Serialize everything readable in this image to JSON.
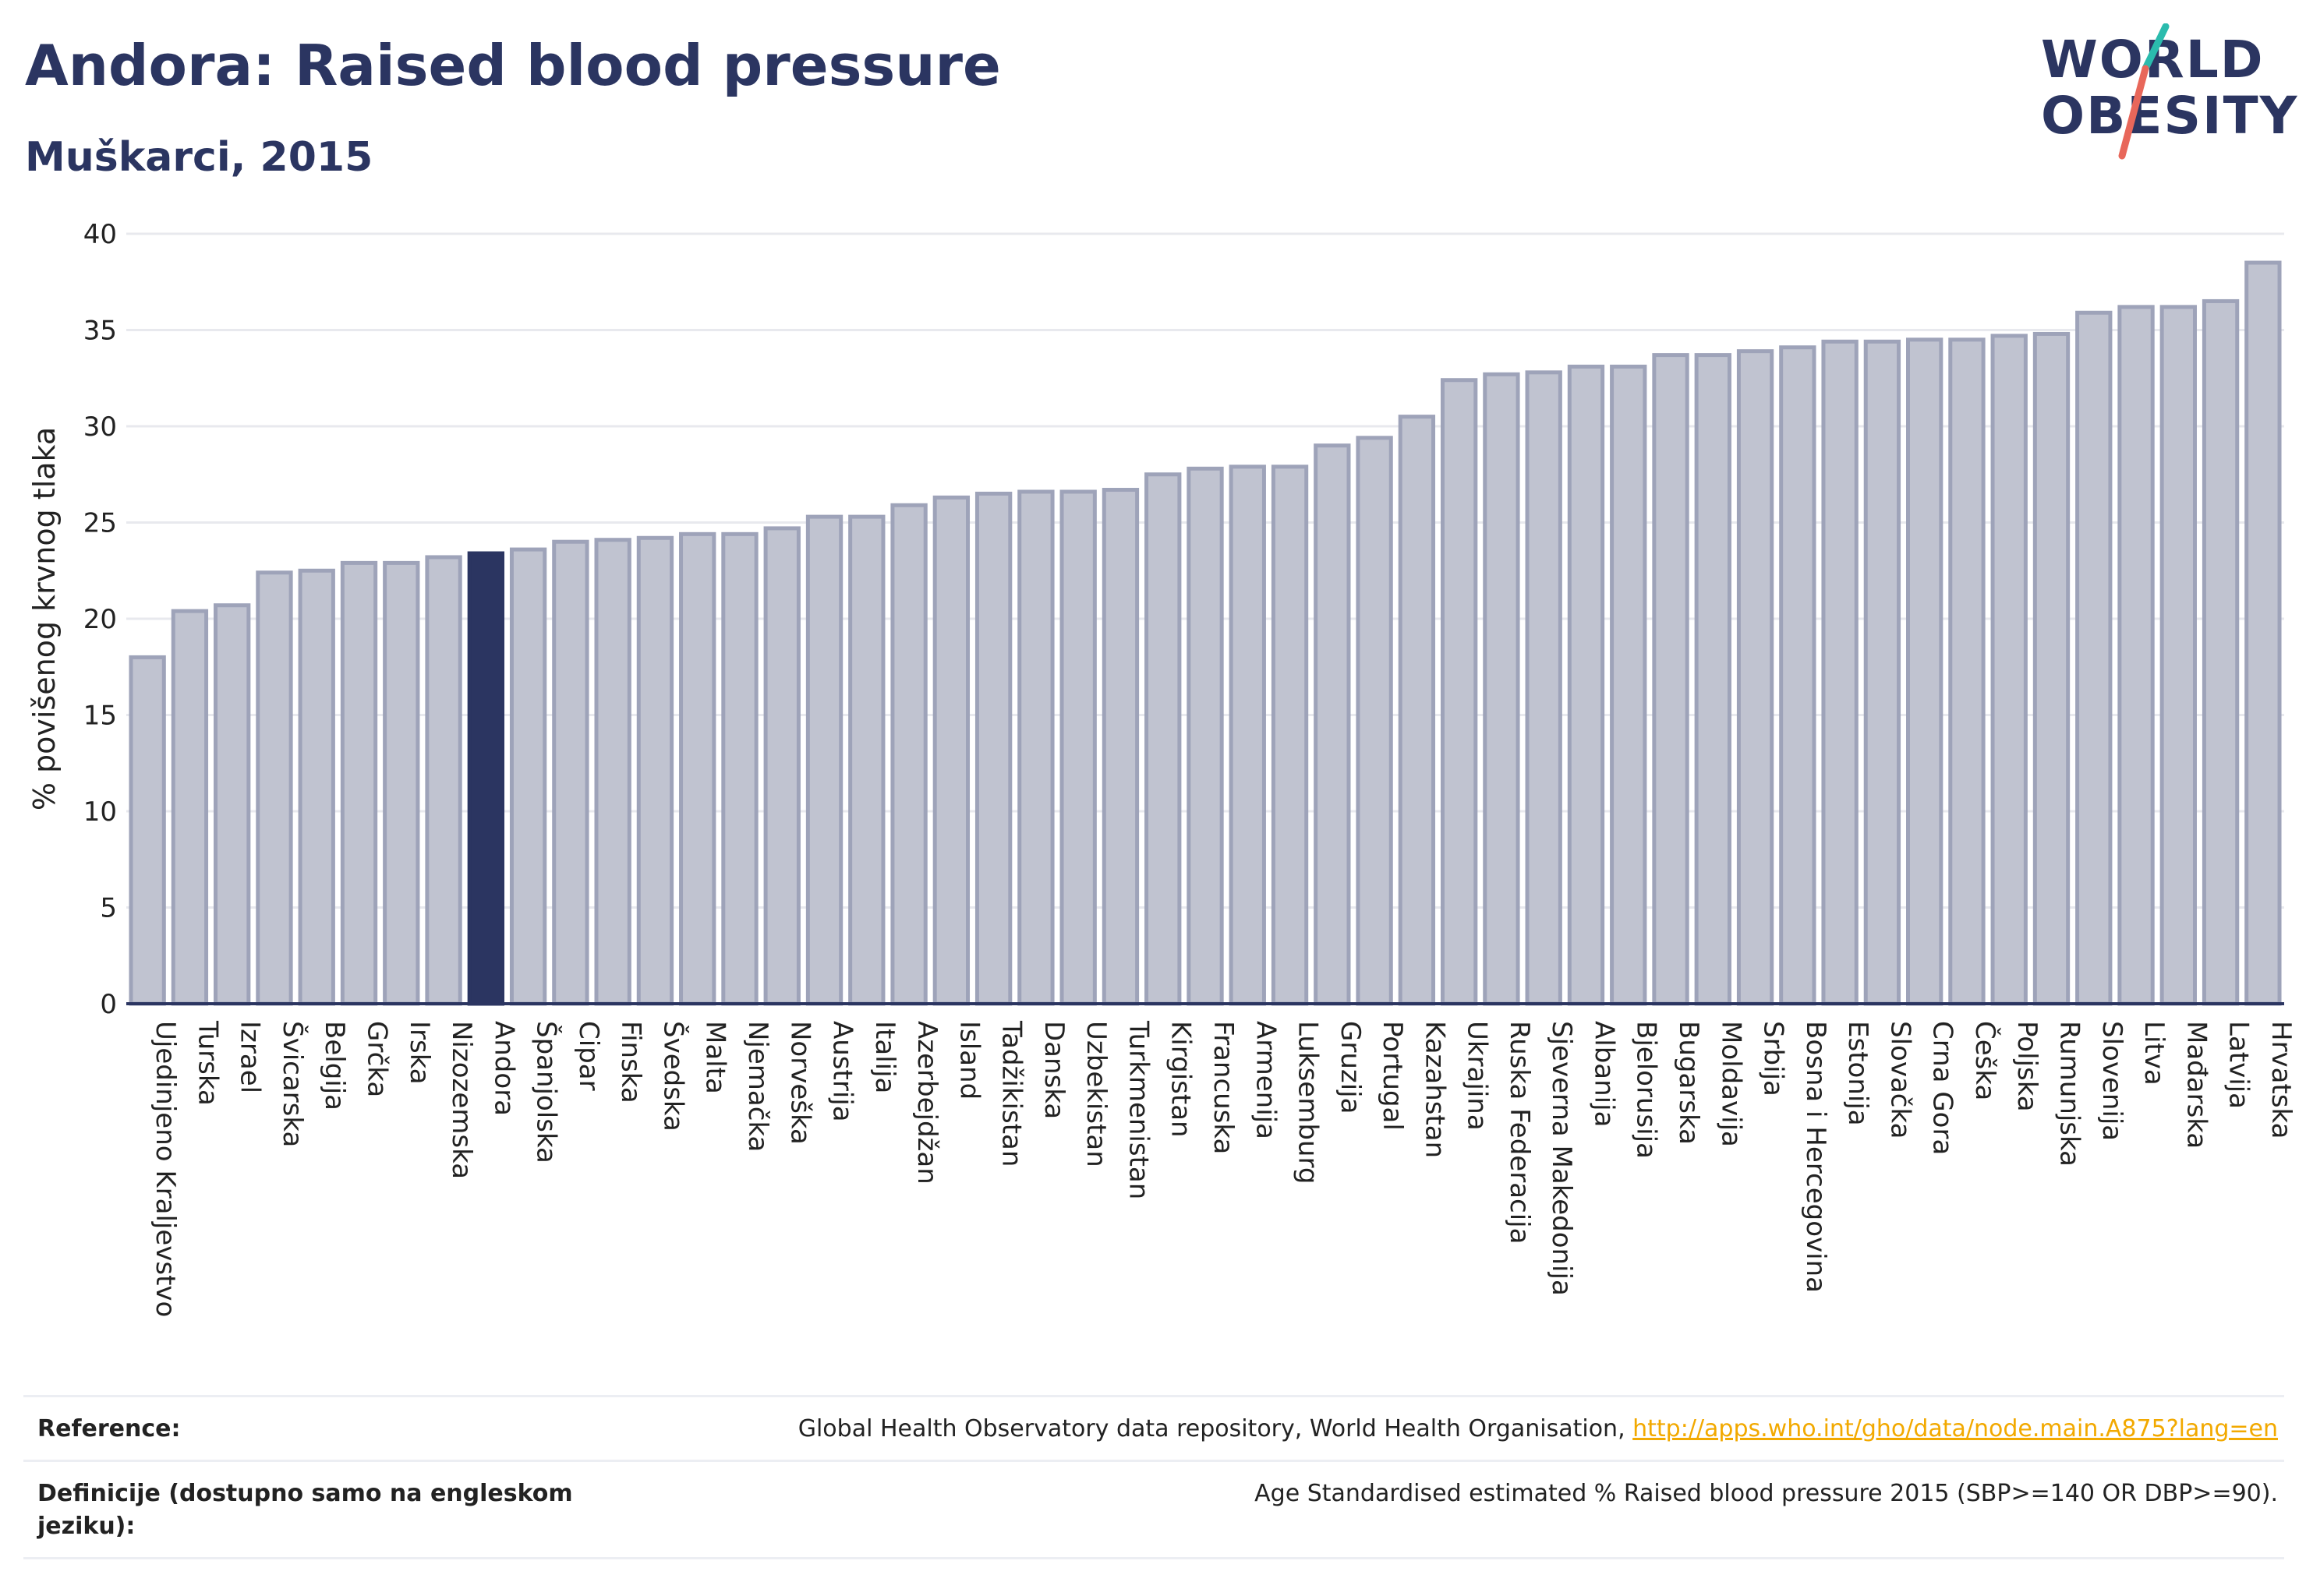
{
  "header": {
    "title": "Andora: Raised blood pressure",
    "subtitle": "Muškarci, 2015"
  },
  "logo": {
    "line1": "WORLD",
    "line2": "OBESITY"
  },
  "colors": {
    "highlight": "#2b3561",
    "bar_fill": "#c0c3d0",
    "bar_stroke": "#9ea3b9",
    "grid": "#e8e9ee",
    "axis": "#2b3561",
    "logo_slash_teal": "#2bbbad",
    "logo_slash_coral": "#e8675a"
  },
  "chart_data": {
    "type": "bar",
    "ylabel": "% povišenog krvnog tlaka",
    "ylim": [
      0,
      40
    ],
    "yticks": [
      0,
      5,
      10,
      15,
      20,
      25,
      30,
      35,
      40
    ],
    "grid": true,
    "highlight": "Andora",
    "categories": [
      "Ujedinjeno Kraljevstvo",
      "Turska",
      "Izrael",
      "Švicarska",
      "Belgija",
      "Grčka",
      "Irska",
      "Nizozemska",
      "Andora",
      "Španjolska",
      "Cipar",
      "Finska",
      "Švedska",
      "Malta",
      "Njemačka",
      "Norveška",
      "Austrija",
      "Italija",
      "Azerbejdžan",
      "Island",
      "Tadžikistan",
      "Danska",
      "Uzbekistan",
      "Turkmenistan",
      "Kirgistan",
      "Francuska",
      "Armenija",
      "Luksemburg",
      "Gruzija",
      "Portugal",
      "Kazahstan",
      "Ukrajina",
      "Ruska Federacija",
      "Sjeverna Makedonija",
      "Albanija",
      "Bjelorusija",
      "Bugarska",
      "Moldavija",
      "Srbija",
      "Bosna i Hercegovina",
      "Estonija",
      "Slovačka",
      "Crna Gora",
      "Češka",
      "Poljska",
      "Rumunjska",
      "Slovenija",
      "Litva",
      "Mađarska",
      "Latvija",
      "Hrvatska"
    ],
    "values": [
      18.0,
      20.4,
      20.7,
      22.4,
      22.5,
      22.9,
      22.9,
      23.2,
      23.4,
      23.6,
      24.0,
      24.1,
      24.2,
      24.4,
      24.4,
      24.7,
      25.3,
      25.3,
      25.9,
      26.3,
      26.5,
      26.6,
      26.6,
      26.7,
      27.5,
      27.8,
      27.9,
      27.9,
      29.0,
      29.4,
      30.5,
      32.4,
      32.7,
      32.8,
      33.1,
      33.1,
      33.7,
      33.7,
      33.9,
      34.1,
      34.4,
      34.4,
      34.5,
      34.5,
      34.7,
      34.8,
      35.9,
      36.2,
      36.2,
      36.5,
      38.5
    ]
  },
  "footer": {
    "reference_label": "Reference:",
    "reference_text": "Global Health Observatory data repository, World Health Organisation, ",
    "reference_link": "http://apps.who.int/gho/data/node.main.A875?lang=en",
    "definition_label": "Definicije (dostupno samo na engleskom jeziku):",
    "definition_text": "Age Standardised estimated % Raised blood pressure 2015 (SBP>=140 OR DBP>=90)."
  }
}
